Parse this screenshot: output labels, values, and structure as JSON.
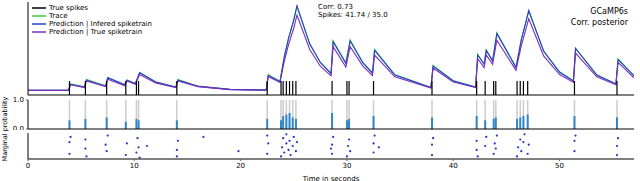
{
  "chart_data": [
    {
      "type": "line",
      "legend": "upper left",
      "tick_labels": false,
      "xlim": [
        0,
        57
      ],
      "ylim": [
        0,
        10
      ],
      "annotations": [
        "Corr: 0.73",
        "Spikes: 41.74 / 35.0",
        "GCaMP6s",
        "Corr. posterior"
      ],
      "x": [
        0,
        3.8,
        4.0,
        5.3,
        5.5,
        7.3,
        7.5,
        9.1,
        9.3,
        10.1,
        10.5,
        12.0,
        13.9,
        14.1,
        16.0,
        19.0,
        22.4,
        22.6,
        23.7,
        24.1,
        24.5,
        25.0,
        25.3,
        26.5,
        27.5,
        28.5,
        28.7,
        29.9,
        30.3,
        31.5,
        32.4,
        32.6,
        34.5,
        37.9,
        38.1,
        40.0,
        42.1,
        42.3,
        42.9,
        43.1,
        43.7,
        44.1,
        45.9,
        46.4,
        47.1,
        48.5,
        50.0,
        51.3,
        51.5,
        53.5,
        55.3,
        55.5,
        57.0
      ],
      "series": [
        {
          "name": "True spikes",
          "type": "event",
          "color": "#000000",
          "x": [
            3.9,
            5.4,
            7.4,
            9.2,
            10.2,
            10.4,
            14.0,
            22.5,
            23.8,
            24.0,
            24.3,
            24.6,
            24.9,
            25.2,
            28.6,
            30.0,
            30.2,
            32.5,
            38.0,
            42.2,
            43.0,
            43.8,
            44.0,
            46.0,
            46.3,
            46.6,
            47.0,
            51.4,
            55.4
          ]
        },
        {
          "name": "Trace",
          "color": "#3cc83c",
          "values": [
            0.5,
            0.5,
            1.2,
            0.87,
            1.67,
            0.98,
            1.88,
            1.12,
            1.62,
            1.25,
            2.45,
            1.42,
            0.86,
            1.66,
            0.95,
            0.6,
            0.52,
            2.2,
            1.48,
            4.0,
            6.0,
            8.0,
            9.5,
            5.45,
            3.5,
            2.35,
            5.85,
            3.44,
            5.94,
            3.5,
            2.4,
            4.9,
            2.2,
            0.81,
            3.2,
            1.55,
            0.87,
            4.37,
            3.36,
            4.86,
            3.7,
            6.7,
            3.0,
            6.0,
            9.0,
            4.75,
            2.5,
            1.54,
            5.04,
            2.18,
            1.19,
            3.89,
            2.1
          ]
        },
        {
          "name": "Prediction | Infered spiketrain",
          "color": "#2a3fd0",
          "values": [
            0.5,
            0.5,
            1.15,
            0.85,
            1.6,
            0.95,
            1.85,
            1.1,
            1.6,
            1.22,
            2.4,
            1.4,
            0.85,
            1.6,
            0.93,
            0.6,
            0.52,
            2.1,
            1.45,
            4.1,
            6.1,
            8.1,
            9.6,
            5.5,
            3.5,
            2.3,
            5.7,
            3.4,
            5.8,
            3.45,
            2.35,
            4.8,
            2.15,
            0.8,
            3.1,
            1.5,
            0.86,
            4.3,
            3.3,
            4.8,
            3.65,
            6.6,
            2.95,
            5.9,
            9.1,
            4.7,
            2.45,
            1.5,
            5.0,
            2.15,
            1.18,
            3.8,
            2.05
          ]
        },
        {
          "name": "Prediction | True spiketrain",
          "color": "#7a2ec0",
          "values": [
            0.5,
            0.5,
            1.1,
            0.8,
            1.5,
            0.9,
            1.7,
            1.0,
            1.5,
            1.15,
            2.2,
            1.3,
            0.8,
            1.5,
            0.9,
            0.58,
            0.52,
            2.0,
            1.35,
            3.6,
            5.4,
            7.2,
            8.6,
            4.9,
            3.1,
            2.05,
            5.2,
            3.0,
            5.2,
            3.1,
            2.1,
            4.3,
            1.95,
            0.75,
            2.9,
            1.4,
            0.8,
            3.9,
            2.95,
            4.3,
            3.3,
            5.9,
            2.65,
            5.3,
            8.2,
            4.2,
            2.2,
            1.35,
            4.5,
            1.95,
            1.1,
            3.5,
            1.85
          ]
        }
      ]
    },
    {
      "type": "bar",
      "ylabel": "Marginal probability",
      "tick_labels": "y",
      "color": "#2f86c8",
      "xlim": [
        0,
        57
      ],
      "ylim": [
        0,
        1
      ],
      "yticks": [
        {
          "value": 0,
          "label": "0.0"
        },
        {
          "value": 1,
          "label": "1.0"
        }
      ],
      "x": [
        3.9,
        5.4,
        7.4,
        9.2,
        10.2,
        10.4,
        14.0,
        22.5,
        23.8,
        24.0,
        24.3,
        24.6,
        24.9,
        25.2,
        28.6,
        30.0,
        30.2,
        32.5,
        38.0,
        42.2,
        43.0,
        43.8,
        44.0,
        46.0,
        46.3,
        46.6,
        47.0,
        51.4,
        55.4
      ],
      "values": [
        0.3,
        0.35,
        0.4,
        0.25,
        0.35,
        0.3,
        0.3,
        0.35,
        0.3,
        0.45,
        0.5,
        0.55,
        0.4,
        0.35,
        0.55,
        0.3,
        0.35,
        0.45,
        0.4,
        0.45,
        0.3,
        0.35,
        0.4,
        0.35,
        0.4,
        0.45,
        0.5,
        0.45,
        0.4
      ]
    },
    {
      "type": "scatter",
      "xlabel": "Time in seconds",
      "tick_labels": "x",
      "color": "#1f35c8",
      "xlim": [
        0,
        57
      ],
      "ylim": [
        0,
        100
      ],
      "xticks": [
        0,
        10,
        20,
        30,
        40,
        50
      ],
      "x": [
        3.9,
        3.9,
        4.0,
        5.4,
        5.5,
        5.4,
        7.4,
        7.3,
        7.5,
        9.2,
        9.3,
        10.2,
        10.3,
        10.4,
        10.5,
        11.2,
        14.0,
        14.1,
        14.0,
        16.5,
        19.8,
        22.5,
        22.6,
        22.5,
        23.8,
        23.9,
        24.0,
        24.1,
        24.3,
        24.3,
        24.5,
        24.6,
        24.7,
        24.9,
        25.0,
        25.2,
        25.3,
        28.6,
        28.6,
        28.7,
        28.5,
        30.0,
        30.1,
        30.2,
        30.3,
        32.5,
        32.5,
        32.6,
        33.0,
        38.0,
        38.0,
        38.1,
        42.2,
        42.2,
        42.3,
        43.0,
        43.1,
        43.8,
        43.9,
        44.0,
        44.1,
        46.0,
        46.1,
        46.3,
        46.4,
        46.6,
        46.7,
        47.0,
        47.1,
        51.4,
        51.4,
        51.5,
        55.4,
        55.4,
        55.5
      ],
      "values": [
        20,
        65,
        85,
        40,
        10,
        75,
        30,
        55,
        90,
        15,
        60,
        25,
        80,
        45,
        5,
        50,
        35,
        70,
        10,
        85,
        30,
        20,
        60,
        90,
        10,
        45,
        80,
        25,
        60,
        95,
        35,
        70,
        15,
        50,
        85,
        30,
        65,
        20,
        55,
        85,
        40,
        10,
        50,
        75,
        30,
        25,
        60,
        90,
        45,
        15,
        55,
        80,
        35,
        70,
        10,
        50,
        85,
        20,
        60,
        40,
        90,
        10,
        45,
        75,
        30,
        65,
        95,
        20,
        55,
        30,
        70,
        90,
        15,
        50,
        80
      ]
    }
  ]
}
